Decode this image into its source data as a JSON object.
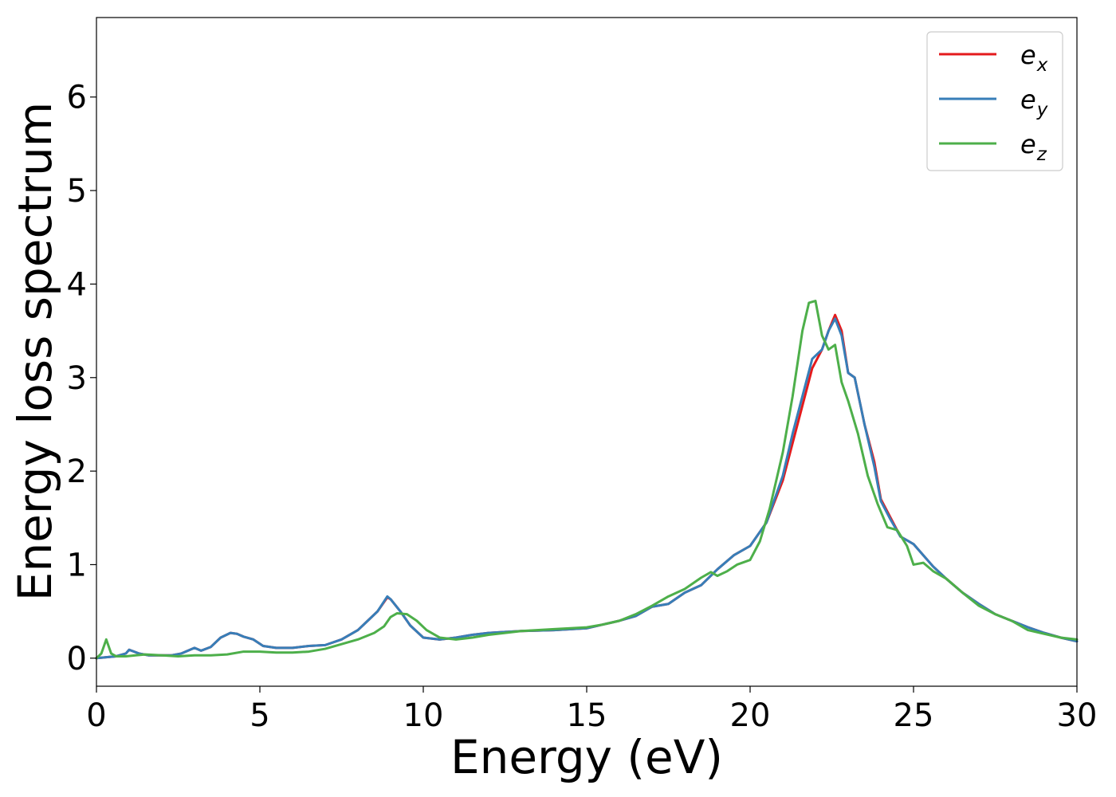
{
  "chart_data": {
    "type": "line",
    "xlabel": "Energy (eV)",
    "ylabel": "Energy loss spectrum",
    "xlim": [
      0,
      30
    ],
    "ylim": [
      -0.3,
      6.85
    ],
    "xticks": [
      "0",
      "5",
      "10",
      "15",
      "20",
      "25",
      "30"
    ],
    "yticks": [
      "0",
      "1",
      "2",
      "3",
      "4",
      "5",
      "6"
    ],
    "grid": false,
    "legend_position": "top-right",
    "series": [
      {
        "name": "e_x",
        "legend_base": "e",
        "legend_sub": "x",
        "color": "#e41a1c",
        "x": [
          0,
          0.3,
          0.6,
          0.9,
          1.0,
          1.3,
          1.6,
          2.0,
          2.3,
          2.6,
          3.0,
          3.2,
          3.5,
          3.8,
          4.1,
          4.3,
          4.5,
          4.8,
          5.1,
          5.5,
          6.0,
          6.5,
          7.0,
          7.5,
          8.0,
          8.3,
          8.6,
          8.9,
          9.0,
          9.3,
          9.6,
          10.0,
          10.5,
          11.0,
          11.5,
          12.0,
          13.0,
          14.0,
          15.0,
          15.5,
          16.0,
          16.5,
          17.0,
          17.5,
          18.0,
          18.5,
          19.0,
          19.5,
          20.0,
          20.5,
          21.0,
          21.3,
          21.6,
          21.9,
          22.2,
          22.4,
          22.6,
          22.8,
          23.0,
          23.2,
          23.5,
          23.8,
          24.0,
          24.3,
          24.6,
          25.0,
          25.3,
          25.6,
          26.0,
          26.5,
          27.0,
          27.5,
          28.0,
          28.5,
          29.0,
          29.5,
          30.0
        ],
        "y": [
          0.0,
          0.01,
          0.02,
          0.05,
          0.09,
          0.05,
          0.03,
          0.03,
          0.03,
          0.05,
          0.11,
          0.08,
          0.12,
          0.22,
          0.27,
          0.26,
          0.23,
          0.2,
          0.13,
          0.11,
          0.11,
          0.13,
          0.14,
          0.2,
          0.3,
          0.4,
          0.5,
          0.65,
          0.63,
          0.5,
          0.35,
          0.22,
          0.2,
          0.22,
          0.25,
          0.27,
          0.29,
          0.3,
          0.32,
          0.36,
          0.4,
          0.45,
          0.55,
          0.58,
          0.7,
          0.78,
          0.95,
          1.1,
          1.2,
          1.45,
          1.9,
          2.3,
          2.7,
          3.1,
          3.3,
          3.5,
          3.67,
          3.5,
          3.05,
          3.0,
          2.5,
          2.1,
          1.7,
          1.5,
          1.3,
          1.22,
          1.1,
          0.98,
          0.85,
          0.7,
          0.58,
          0.47,
          0.4,
          0.33,
          0.27,
          0.22,
          0.18
        ]
      },
      {
        "name": "e_y",
        "legend_base": "e",
        "legend_sub": "y",
        "color": "#377eb8",
        "x": [
          0,
          0.3,
          0.6,
          0.9,
          1.0,
          1.3,
          1.6,
          2.0,
          2.3,
          2.6,
          3.0,
          3.2,
          3.5,
          3.8,
          4.1,
          4.3,
          4.5,
          4.8,
          5.1,
          5.5,
          6.0,
          6.5,
          7.0,
          7.5,
          8.0,
          8.3,
          8.6,
          8.9,
          9.0,
          9.3,
          9.6,
          10.0,
          10.5,
          11.0,
          11.5,
          12.0,
          13.0,
          14.0,
          15.0,
          15.5,
          16.0,
          16.5,
          17.0,
          17.5,
          18.0,
          18.5,
          19.0,
          19.5,
          20.0,
          20.5,
          21.0,
          21.3,
          21.6,
          21.9,
          22.2,
          22.4,
          22.6,
          22.8,
          23.0,
          23.2,
          23.5,
          23.8,
          24.0,
          24.3,
          24.6,
          25.0,
          25.3,
          25.6,
          26.0,
          26.5,
          27.0,
          27.5,
          28.0,
          28.5,
          29.0,
          29.5,
          30.0
        ],
        "y": [
          0.0,
          0.01,
          0.02,
          0.05,
          0.09,
          0.05,
          0.03,
          0.03,
          0.03,
          0.05,
          0.11,
          0.08,
          0.12,
          0.22,
          0.27,
          0.26,
          0.23,
          0.2,
          0.13,
          0.11,
          0.11,
          0.13,
          0.14,
          0.2,
          0.3,
          0.4,
          0.5,
          0.66,
          0.63,
          0.5,
          0.35,
          0.22,
          0.2,
          0.22,
          0.25,
          0.27,
          0.29,
          0.3,
          0.32,
          0.36,
          0.4,
          0.45,
          0.55,
          0.58,
          0.7,
          0.78,
          0.95,
          1.1,
          1.2,
          1.45,
          1.95,
          2.4,
          2.8,
          3.2,
          3.3,
          3.5,
          3.63,
          3.45,
          3.05,
          3.0,
          2.5,
          2.05,
          1.68,
          1.48,
          1.3,
          1.22,
          1.1,
          0.98,
          0.85,
          0.7,
          0.58,
          0.47,
          0.4,
          0.33,
          0.27,
          0.22,
          0.18
        ]
      },
      {
        "name": "e_z",
        "legend_base": "e",
        "legend_sub": "z",
        "color": "#4daf4a",
        "x": [
          0,
          0.15,
          0.3,
          0.45,
          0.6,
          0.9,
          1.2,
          1.5,
          2.0,
          2.5,
          3.0,
          3.5,
          4.0,
          4.5,
          5.0,
          5.5,
          6.0,
          6.5,
          7.0,
          7.5,
          8.0,
          8.5,
          8.8,
          9.0,
          9.2,
          9.5,
          9.8,
          10.1,
          10.5,
          11.0,
          11.5,
          12.0,
          13.0,
          14.0,
          15.0,
          15.5,
          16.0,
          16.5,
          17.0,
          17.5,
          18.0,
          18.5,
          18.8,
          19.0,
          19.3,
          19.6,
          20.0,
          20.3,
          20.6,
          21.0,
          21.3,
          21.6,
          21.8,
          22.0,
          22.2,
          22.4,
          22.6,
          22.8,
          23.0,
          23.3,
          23.6,
          23.9,
          24.2,
          24.5,
          24.8,
          25.0,
          25.3,
          25.6,
          26.0,
          26.5,
          27.0,
          27.5,
          28.0,
          28.5,
          29.0,
          29.5,
          30.0
        ],
        "y": [
          0.0,
          0.05,
          0.2,
          0.05,
          0.02,
          0.02,
          0.03,
          0.04,
          0.03,
          0.02,
          0.03,
          0.03,
          0.04,
          0.07,
          0.07,
          0.06,
          0.06,
          0.07,
          0.1,
          0.15,
          0.2,
          0.27,
          0.34,
          0.44,
          0.48,
          0.47,
          0.4,
          0.3,
          0.22,
          0.2,
          0.22,
          0.25,
          0.29,
          0.31,
          0.33,
          0.36,
          0.4,
          0.47,
          0.56,
          0.66,
          0.74,
          0.86,
          0.92,
          0.88,
          0.93,
          1.0,
          1.05,
          1.25,
          1.6,
          2.2,
          2.8,
          3.5,
          3.8,
          3.82,
          3.45,
          3.3,
          3.35,
          2.95,
          2.75,
          2.4,
          1.95,
          1.65,
          1.4,
          1.37,
          1.2,
          1.0,
          1.02,
          0.93,
          0.85,
          0.7,
          0.56,
          0.47,
          0.4,
          0.3,
          0.26,
          0.22,
          0.2
        ]
      }
    ]
  }
}
